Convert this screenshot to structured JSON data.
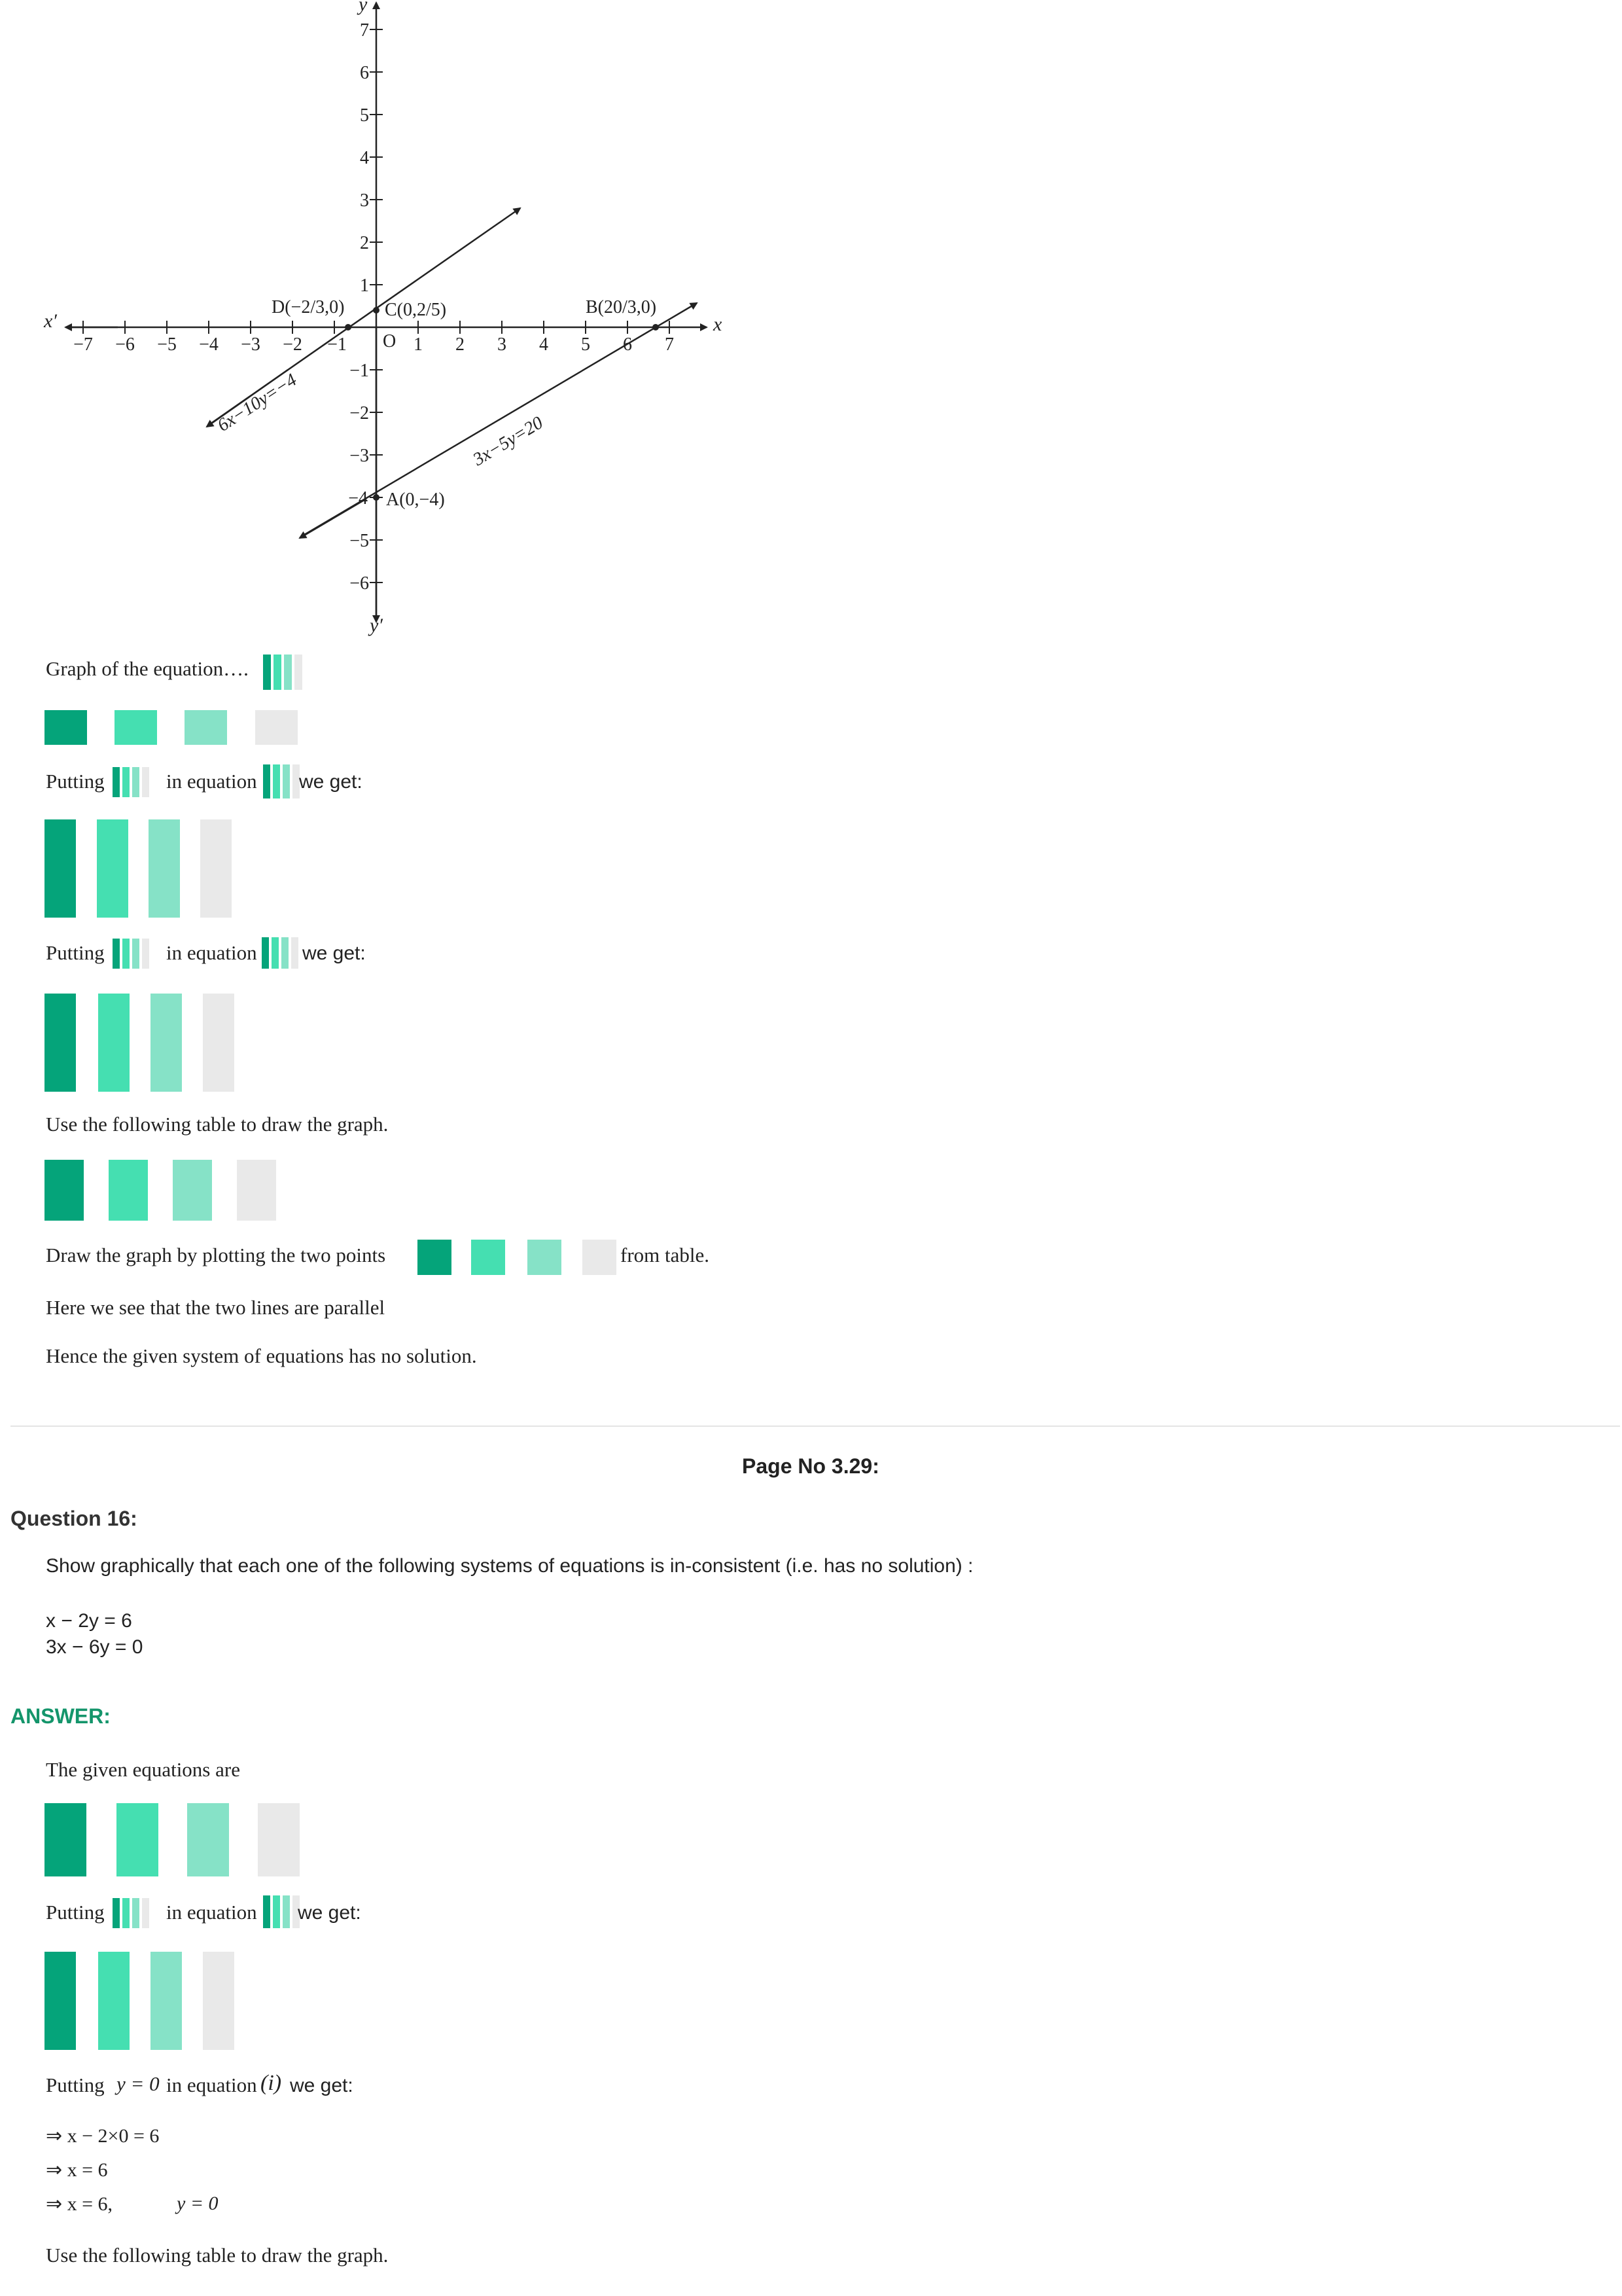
{
  "colors": {
    "c1": "#05a47a",
    "c2": "#45dfb1",
    "c3": "#86e2c7",
    "c4": "#e9e9e9",
    "answer": "#14956b"
  },
  "graph": {
    "y_axis_label": "y",
    "y_axis_label_bottom": "y′",
    "x_axis_label": "x",
    "x_axis_label_left": "x′",
    "origin_label": "O",
    "x_ticks": [
      "−7",
      "−6",
      "−5",
      "−4",
      "−3",
      "−2",
      "−1",
      "1",
      "2",
      "3",
      "4",
      "5",
      "6",
      "7"
    ],
    "y_ticks_pos": [
      "1",
      "2",
      "3",
      "4",
      "5",
      "6",
      "7"
    ],
    "y_ticks_neg": [
      "−1",
      "−2",
      "−3",
      "−4",
      "−5",
      "−6"
    ],
    "point_labels": {
      "D": "D(−2/3,0)",
      "C": "C(0,2/5)",
      "B": "B(20/3,0)",
      "A": "A(0,−4)"
    },
    "line_labels": {
      "upper": "6x−10y=−4",
      "lower": "3x−5y=20"
    }
  },
  "section1": {
    "graph_caption": "Graph of the equation….",
    "putting1_a": "Putting",
    "putting1_b": "in equation",
    "putting1_c": "we get:",
    "putting2_a": "Putting",
    "putting2_b": "in equation",
    "putting2_c": "we get:",
    "table_text": "Use the following table to draw the graph.",
    "draw_a": "Draw the graph by plotting the two points",
    "draw_b": "from table.",
    "parallel": "Here we see that the two lines are parallel",
    "hence": "Hence the given system of equations has no solution."
  },
  "page_no": "Page No 3.29:",
  "question": {
    "heading": "Question 16:",
    "prompt": "Show graphically that each one of the following systems of equations is in-consistent (i.e. has no solution) :",
    "eq1": "x − 2y = 6",
    "eq2": "3x − 6y = 0"
  },
  "answer": {
    "heading": "ANSWER:",
    "given": "The given equations are",
    "putting1_a": "Putting",
    "putting1_b": "in equation",
    "putting1_c": "we get:",
    "putting2_a": "Putting",
    "putting2_var": "y = 0",
    "putting2_b": "in equation",
    "putting2_eqref": "(i)",
    "putting2_c": "we get:",
    "step1": "⇒ x − 2×0 = 6",
    "step2": "⇒ x = 6",
    "step3a": "⇒ x = 6,",
    "step3b": "y = 0",
    "table_text": "Use the following table to draw the graph."
  }
}
